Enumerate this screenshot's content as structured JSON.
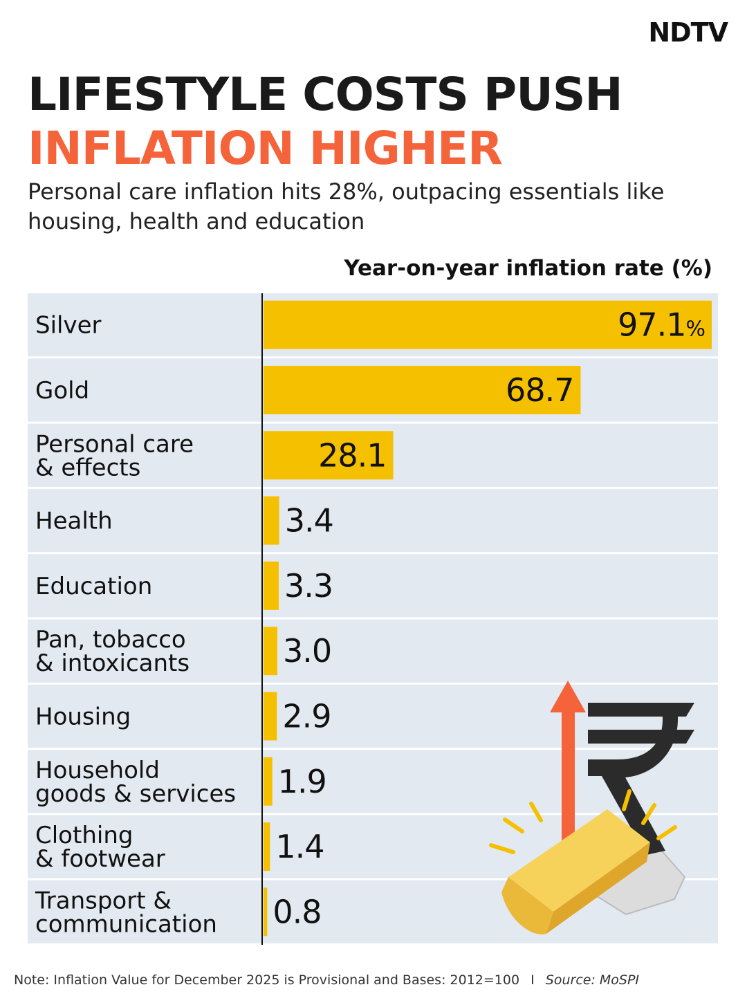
{
  "brand": {
    "logo_text": "NDTV"
  },
  "header": {
    "title_line1": "LIFESTYLE COSTS PUSH",
    "title_line2": "INFLATION HIGHER",
    "subtitle": "Personal care inflation hits 28%, outpacing essentials like housing, health and education"
  },
  "chart_data": {
    "type": "bar",
    "orientation": "horizontal",
    "title": "Year-on-year inflation rate (%)",
    "categories": [
      [
        "Silver"
      ],
      [
        "Gold"
      ],
      [
        "Personal care",
        "& effects"
      ],
      [
        "Health"
      ],
      [
        "Education"
      ],
      [
        "Pan, tobacco",
        "& intoxicants"
      ],
      [
        "Housing"
      ],
      [
        "Household",
        "goods & services"
      ],
      [
        "Clothing",
        "& footwear"
      ],
      [
        "Transport &",
        "communication"
      ]
    ],
    "values": [
      97.1,
      68.7,
      28.1,
      3.4,
      3.3,
      3.0,
      2.9,
      1.9,
      1.4,
      0.8
    ],
    "value_labels": [
      "97.1",
      "68.7",
      "28.1",
      "3.4",
      "3.3",
      "3.0",
      "2.9",
      "1.9",
      "1.4",
      "0.8"
    ],
    "first_label_unit": "%",
    "xlim": [
      0,
      97.1
    ],
    "bar_color": "#f5c000",
    "row_background": "#e3e9f1"
  },
  "footer": {
    "note": "Note: Inflation Value for December 2025 is Provisional and Bases: 2012=100",
    "separator": "I",
    "source": "Source: MoSPI"
  },
  "colors": {
    "accent": "#f4633a",
    "ink": "#1a1a1a"
  }
}
